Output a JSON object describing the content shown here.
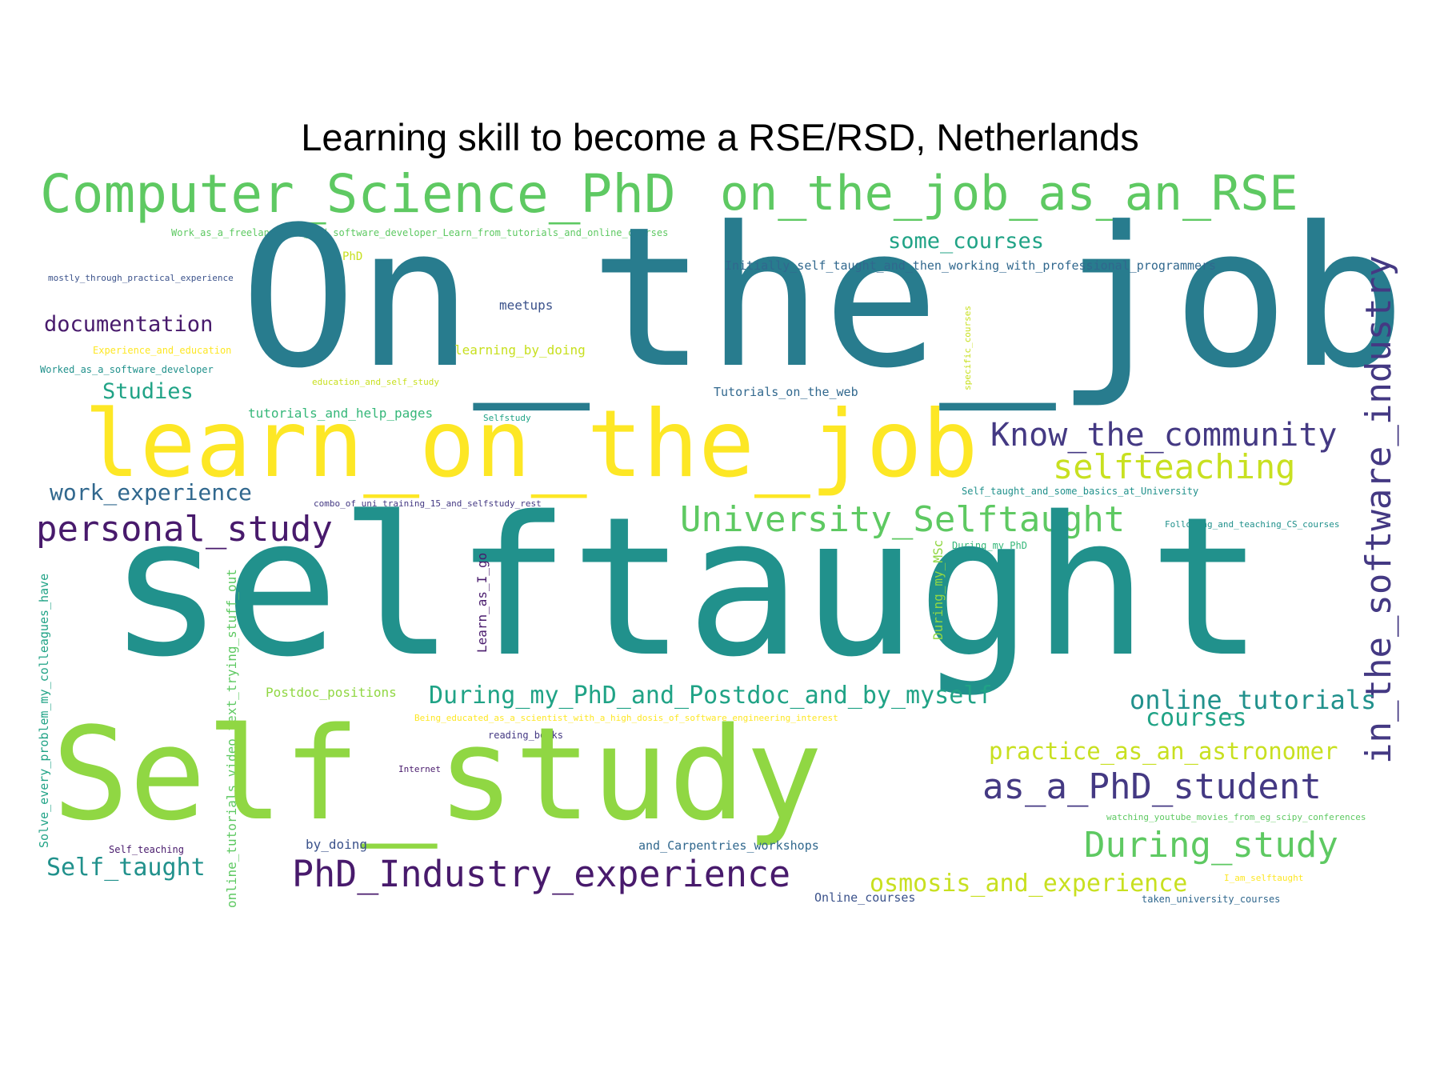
{
  "title": "Learning skill to become a RSE/RSD, Netherlands",
  "palette": {
    "darkpurple": "#481a6c",
    "purple": "#443983",
    "indigo": "#3b528b",
    "blue": "#31688e",
    "teal": "#287c8e",
    "teal2": "#21918c",
    "green": "#20a386",
    "green2": "#35b779",
    "lime": "#5ec962",
    "lime2": "#90d743",
    "yellowgreen": "#c8e020",
    "yellow": "#fde725"
  },
  "words": [
    {
      "text": "Computer_Science_PhD"
    },
    {
      "text": "on_the_job_as_an_RSE"
    },
    {
      "text": "Work_as_a_freelance_web_and_software_developer_Learn_from_tutorials_and_online_courses"
    },
    {
      "text": "On_the_job"
    },
    {
      "text": "some_courses"
    },
    {
      "text": "PhD"
    },
    {
      "text": "Initially_self_taught_and_then_working_with_professional_programmers"
    },
    {
      "text": "mostly_through_practical_experience"
    },
    {
      "text": "meetups"
    },
    {
      "text": "documentation"
    },
    {
      "text": "Experience_and_education"
    },
    {
      "text": "learning_by_doing"
    },
    {
      "text": "Worked_as_a_software_developer"
    },
    {
      "text": "education_and_self_study"
    },
    {
      "text": "specific_courses"
    },
    {
      "text": "Studies"
    },
    {
      "text": "Tutorials_on_the_web"
    },
    {
      "text": "tutorials_and_help_pages"
    },
    {
      "text": "Selfstudy"
    },
    {
      "text": "in_the_software_industry"
    },
    {
      "text": "learn_on_the_job"
    },
    {
      "text": "Know_the_community"
    },
    {
      "text": "selfteaching"
    },
    {
      "text": "work_experience"
    },
    {
      "text": "Self_taught_and_some_basics_at_University"
    },
    {
      "text": "combo_of_uni_training_15_and_selfstudy_rest"
    },
    {
      "text": "University_Selftaught"
    },
    {
      "text": "Following_and_teaching_CS_courses"
    },
    {
      "text": "personal_study"
    },
    {
      "text": "During_my_PhD"
    },
    {
      "text": "selftaught"
    },
    {
      "text": "Solve_every_problem_my_colleagues_have"
    },
    {
      "text": "online_tutorials_video_text_trying_stuff_out"
    },
    {
      "text": "Learn_as_I_go"
    },
    {
      "text": "During_my_MSc"
    },
    {
      "text": "Postdoc_positions"
    },
    {
      "text": "During_my_PhD_and_Postdoc_and_by_myself"
    },
    {
      "text": "online_tutorials"
    },
    {
      "text": "courses"
    },
    {
      "text": "Being_educated_as_a_scientist_with_a_high_dosis_of_software_engineering_interest"
    },
    {
      "text": "reading_books"
    },
    {
      "text": "Self_study"
    },
    {
      "text": "practice_as_an_astronomer"
    },
    {
      "text": "Internet"
    },
    {
      "text": "as_a_PhD_student"
    },
    {
      "text": "watching_youtube_movies_from_eg_scipy_conferences"
    },
    {
      "text": "Self_teaching"
    },
    {
      "text": "by_doing"
    },
    {
      "text": "and_Carpentries_workshops"
    },
    {
      "text": "During_study"
    },
    {
      "text": "Self_taught"
    },
    {
      "text": "PhD_Industry_experience"
    },
    {
      "text": "osmosis_and_experience"
    },
    {
      "text": "I_am_selftaught"
    },
    {
      "text": "Online_courses"
    },
    {
      "text": "taken_university_courses"
    }
  ]
}
